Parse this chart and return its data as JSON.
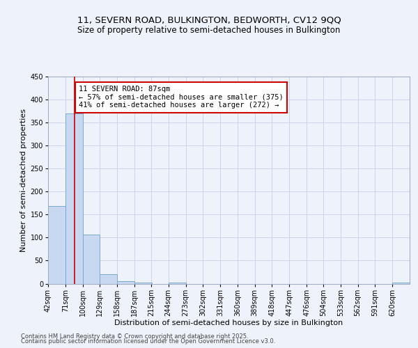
{
  "title_line1": "11, SEVERN ROAD, BULKINGTON, BEDWORTH, CV12 9QQ",
  "title_line2": "Size of property relative to semi-detached houses in Bulkington",
  "xlabel": "Distribution of semi-detached houses by size in Bulkington",
  "ylabel": "Number of semi-detached properties",
  "bin_labels": [
    "42sqm",
    "71sqm",
    "100sqm",
    "129sqm",
    "158sqm",
    "187sqm",
    "215sqm",
    "244sqm",
    "273sqm",
    "302sqm",
    "331sqm",
    "360sqm",
    "389sqm",
    "418sqm",
    "447sqm",
    "476sqm",
    "504sqm",
    "533sqm",
    "562sqm",
    "591sqm",
    "620sqm"
  ],
  "bin_edges": [
    42,
    71,
    100,
    129,
    158,
    187,
    215,
    244,
    273,
    302,
    331,
    360,
    389,
    418,
    447,
    476,
    504,
    533,
    562,
    591,
    620
  ],
  "bar_values": [
    168,
    370,
    106,
    20,
    5,
    3,
    0,
    2,
    0,
    0,
    0,
    0,
    0,
    0,
    0,
    0,
    0,
    0,
    0,
    0,
    3
  ],
  "bar_color": "#c8d8f0",
  "bar_edge_color": "#7aabcc",
  "red_line_x": 87,
  "annotation_line1": "11 SEVERN ROAD: 87sqm",
  "annotation_line2": "← 57% of semi-detached houses are smaller (375)",
  "annotation_line3": "41% of semi-detached houses are larger (272) →",
  "annotation_box_color": "#ffffff",
  "annotation_box_edge_color": "#cc0000",
  "ylim": [
    0,
    450
  ],
  "yticks": [
    0,
    50,
    100,
    150,
    200,
    250,
    300,
    350,
    400,
    450
  ],
  "footer_line1": "Contains HM Land Registry data © Crown copyright and database right 2025.",
  "footer_line2": "Contains public sector information licensed under the Open Government Licence v3.0.",
  "background_color": "#eef2fb",
  "grid_color": "#c8cfe8",
  "title_fontsize": 9.5,
  "subtitle_fontsize": 8.5,
  "axis_label_fontsize": 8,
  "tick_fontsize": 7,
  "annotation_fontsize": 7.5,
  "footer_fontsize": 6
}
